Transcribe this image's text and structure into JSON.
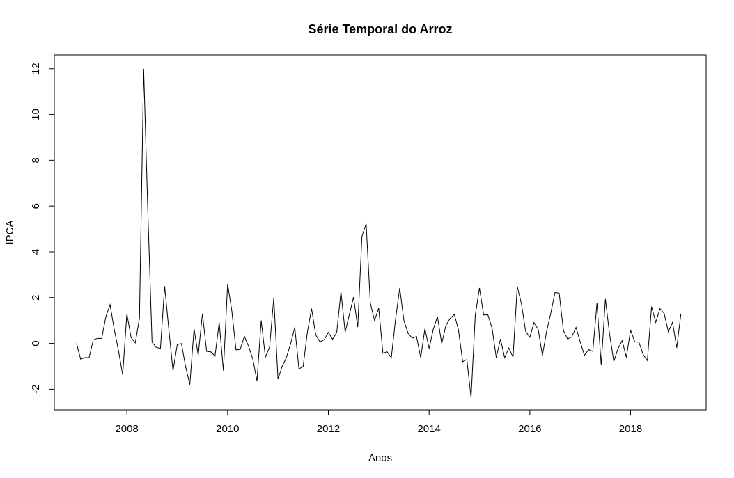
{
  "chart_data": {
    "type": "line",
    "title": "Série Temporal do Arroz",
    "xlabel": "Anos",
    "ylabel": "IPCA",
    "x_start": 2007.0,
    "x_step": 0.0833333,
    "xlim": [
      2006.56,
      2019.5
    ],
    "ylim": [
      -2.9,
      12.6
    ],
    "x_ticks": [
      2008,
      2010,
      2012,
      2014,
      2016,
      2018
    ],
    "y_ticks": [
      -2,
      0,
      2,
      4,
      6,
      8,
      10,
      12
    ],
    "grid": false,
    "legend": "none",
    "line_color": "#000000",
    "series": [
      {
        "values": [
          0.0,
          -0.69,
          -0.62,
          -0.62,
          0.15,
          0.22,
          0.22,
          1.17,
          1.69,
          0.6,
          -0.31,
          -1.37,
          1.3,
          0.26,
          0.02,
          1.1,
          12.0,
          5.76,
          0.05,
          -0.17,
          -0.22,
          2.5,
          0.6,
          -1.2,
          -0.05,
          -0.01,
          -1.02,
          -1.8,
          0.64,
          -0.52,
          1.3,
          -0.35,
          -0.37,
          -0.55,
          0.92,
          -1.19,
          2.6,
          1.43,
          -0.28,
          -0.26,
          0.31,
          -0.13,
          -0.68,
          -1.64,
          1.0,
          -0.6,
          -0.16,
          2.0,
          -1.56,
          -1.0,
          -0.62,
          -0.02,
          0.7,
          -1.12,
          -1.0,
          0.49,
          1.52,
          0.37,
          0.07,
          0.16,
          0.48,
          0.18,
          0.48,
          2.26,
          0.49,
          1.26,
          2.02,
          0.71,
          4.68,
          5.23,
          1.76,
          1.0,
          1.54,
          -0.43,
          -0.37,
          -0.62,
          1.04,
          2.42,
          1.0,
          0.44,
          0.23,
          0.3,
          -0.62,
          0.64,
          -0.22,
          0.62,
          1.17,
          -0.01,
          0.78,
          1.09,
          1.27,
          0.59,
          -0.8,
          -0.7,
          -2.37,
          1.23,
          2.42,
          1.24,
          1.25,
          0.67,
          -0.62,
          0.19,
          -0.62,
          -0.2,
          -0.6,
          2.49,
          1.73,
          0.53,
          0.27,
          0.91,
          0.61,
          -0.53,
          0.53,
          1.33,
          2.23,
          2.19,
          0.56,
          0.19,
          0.29,
          0.7,
          0.07,
          -0.52,
          -0.27,
          -0.35,
          1.77,
          -0.94,
          1.94,
          0.4,
          -0.79,
          -0.23,
          0.12,
          -0.61,
          0.58,
          0.07,
          0.05,
          -0.49,
          -0.75,
          1.61,
          0.92,
          1.52,
          1.31,
          0.51,
          0.92,
          -0.19,
          1.3
        ]
      }
    ]
  }
}
